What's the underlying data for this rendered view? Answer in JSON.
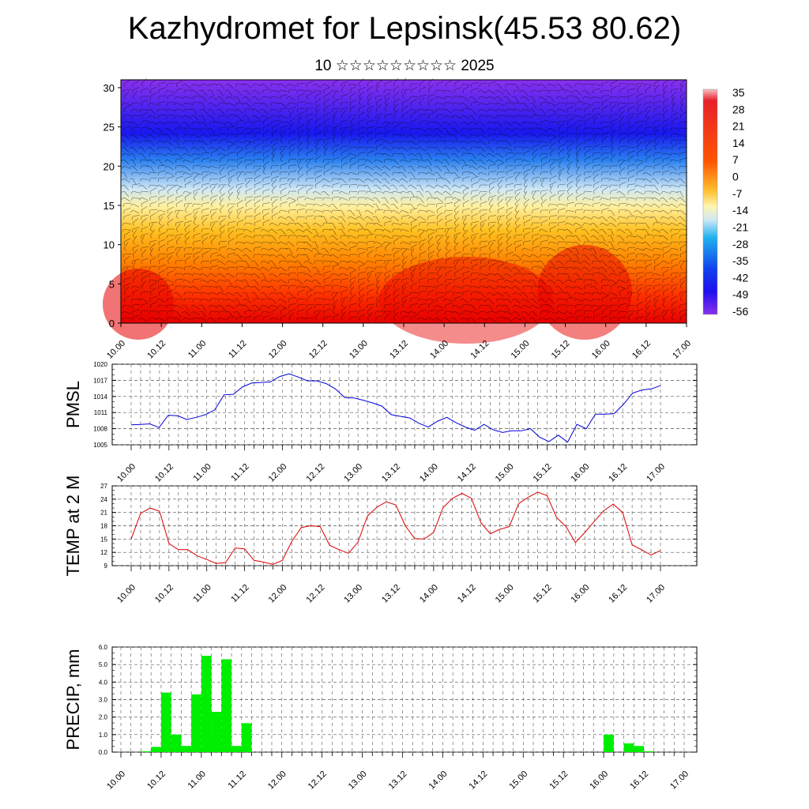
{
  "header": {
    "title": "Kazhydromet for Lepsinsk(45.53 80.62)",
    "subtitle": "10 ☆☆☆☆☆☆☆☆☆ 2025"
  },
  "time_ticks": [
    "10.00",
    "10.12",
    "11.00",
    "11.12",
    "12.00",
    "12.12",
    "13.00",
    "13.12",
    "14.00",
    "14.12",
    "15.00",
    "15.12",
    "16.00",
    "16.12",
    "17.00"
  ],
  "colors": {
    "pmsl_line": "#0000dd",
    "temp_line": "#dd0000",
    "precip_bar": "#00ee00",
    "grid": "#555555"
  },
  "chart_data": [
    {
      "type": "heatmap",
      "name": "cross-section",
      "x_ticks": [
        "10.00",
        "10.12",
        "11.00",
        "11.12",
        "12.00",
        "12.12",
        "13.00",
        "13.12",
        "14.00",
        "14.12",
        "15.00",
        "15.12",
        "16.00",
        "16.12",
        "17.00"
      ],
      "y_ticks": [
        0,
        5,
        10,
        15,
        20,
        25,
        30
      ],
      "ylim": [
        0,
        31
      ],
      "colorbar_labels": [
        "35",
        "28",
        "21",
        "14",
        "7",
        "0",
        "-7",
        "-14",
        "-21",
        "-28",
        "-35",
        "-42",
        "-49",
        "-56"
      ],
      "colorbar_range": [
        -63,
        42
      ],
      "levels": [
        {
          "height": 0,
          "value": 27
        },
        {
          "height": 5,
          "value": 18
        },
        {
          "height": 10,
          "value": 7
        },
        {
          "height": 15,
          "value": -12
        },
        {
          "height": 20,
          "value": -32
        },
        {
          "height": 25,
          "value": -55
        },
        {
          "height": 27,
          "value": -50
        },
        {
          "height": 31,
          "value": -60
        }
      ],
      "overlay": "wind barbs"
    },
    {
      "type": "line",
      "ylabel": "PMSL",
      "x_ticks": [
        "10.00",
        "10.12",
        "11.00",
        "11.12",
        "12.00",
        "12.12",
        "13.00",
        "13.12",
        "14.00",
        "14.12",
        "15.00",
        "15.12",
        "16.00",
        "16.12",
        "17.00"
      ],
      "y_ticks": [
        1005,
        1008,
        1011,
        1014,
        1017,
        1020
      ],
      "ylim": [
        1005,
        1020
      ],
      "series": [
        {
          "values": [
            1008.7,
            1008.8,
            1008.9,
            1008.2,
            1010.5,
            1010.4,
            1009.7,
            1010.1,
            1010.6,
            1011.5,
            1014.3,
            1014.4,
            1015.8,
            1016.5,
            1016.6,
            1016.7,
            1017.7,
            1018.2,
            1017.6,
            1016.9,
            1016.9,
            1016.4,
            1015.4,
            1013.8,
            1013.7,
            1013.3,
            1012.8,
            1012.2,
            1010.6,
            1010.3,
            1010.0,
            1009.0,
            1008.3,
            1009.4,
            1010.1,
            1009.1,
            1008.3,
            1007.7,
            1008.8,
            1007.8,
            1007.3,
            1007.6,
            1007.6,
            1008.0,
            1006.4,
            1005.6,
            1006.8,
            1005.5,
            1008.8,
            1008.0,
            1010.7,
            1010.7,
            1010.8,
            1012.5,
            1014.6,
            1015.2,
            1015.4,
            1016.0
          ]
        }
      ]
    },
    {
      "type": "line",
      "ylabel": "TEMP at 2 M",
      "x_ticks": [
        "10.00",
        "10.12",
        "11.00",
        "11.12",
        "12.00",
        "12.12",
        "13.00",
        "13.12",
        "14.00",
        "14.12",
        "15.00",
        "15.12",
        "16.00",
        "16.12",
        "17.00"
      ],
      "y_ticks": [
        9,
        12,
        15,
        18,
        21,
        24,
        27
      ],
      "ylim": [
        9,
        27
      ],
      "series": [
        {
          "values": [
            15.0,
            20.8,
            22.0,
            21.3,
            14.0,
            12.6,
            12.6,
            11.2,
            10.4,
            9.5,
            9.7,
            13.0,
            12.8,
            10.2,
            9.8,
            9.3,
            10.2,
            14.5,
            17.6,
            18.0,
            17.8,
            13.6,
            12.6,
            11.8,
            14.3,
            20.2,
            22.2,
            23.4,
            22.7,
            18.0,
            15.1,
            15.0,
            16.5,
            22.1,
            24.2,
            25.3,
            24.2,
            18.7,
            16.2,
            17.2,
            17.8,
            23.0,
            24.4,
            25.6,
            24.8,
            19.9,
            17.8,
            14.2,
            16.5,
            19.0,
            21.4,
            22.9,
            21.0,
            13.7,
            12.6,
            11.4,
            12.4
          ]
        }
      ]
    },
    {
      "type": "bar",
      "ylabel": "PRECIP, mm",
      "x_ticks": [
        "10.00",
        "10.12",
        "11.00",
        "11.12",
        "12.00",
        "12.12",
        "13.00",
        "13.12",
        "14.00",
        "14.12",
        "15.00",
        "15.12",
        "16.00",
        "16.12",
        "17.00"
      ],
      "y_ticks": [
        "0.0",
        "1.0",
        "2.0",
        "3.0",
        "4.0",
        "5.0",
        "6.0"
      ],
      "ylim": [
        0,
        6
      ],
      "values": [
        0,
        0,
        0.05,
        0.3,
        3.4,
        1.0,
        0.35,
        3.3,
        5.5,
        2.3,
        5.3,
        0.35,
        1.65,
        0,
        0,
        0,
        0,
        0,
        0,
        0,
        0,
        0,
        0,
        0,
        0,
        0,
        0,
        0,
        0,
        0,
        0,
        0,
        0,
        0,
        0,
        0,
        0,
        0,
        0,
        0,
        0,
        0,
        0,
        0,
        0,
        0,
        0,
        0,
        1.0,
        0,
        0.5,
        0.35,
        0.05,
        0,
        0,
        0
      ]
    }
  ]
}
